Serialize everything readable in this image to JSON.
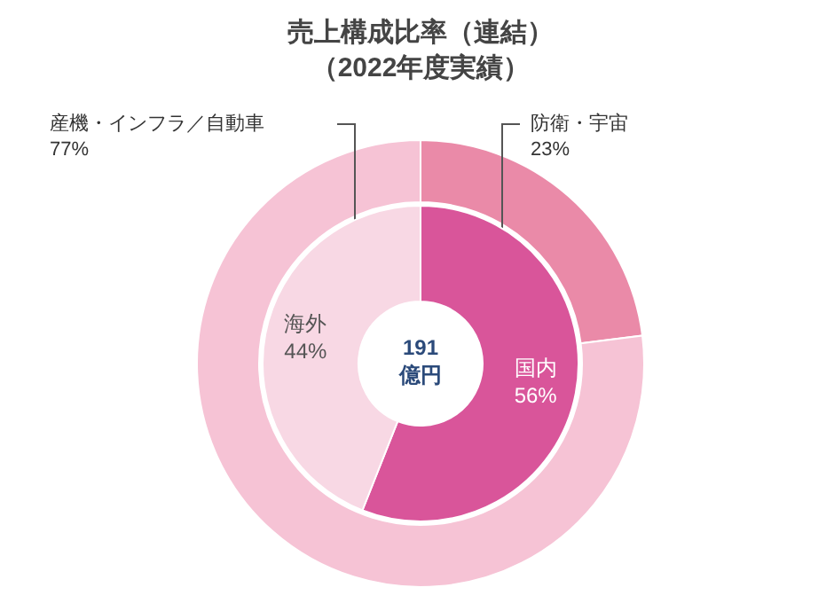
{
  "chart_data": [
    {
      "type": "donut",
      "title": "売上構成比率（連結）",
      "subtitle": "（2022年度実績）",
      "categories": [
        "防衛・宇宙",
        "産機・インフラ／自動車"
      ],
      "values": [
        23,
        77
      ],
      "value_labels": [
        "23%",
        "77%"
      ],
      "colors": [
        "#ea8aa8",
        "#f6c3d5"
      ]
    },
    {
      "type": "donut",
      "categories": [
        "国内",
        "海外"
      ],
      "values": [
        56,
        44
      ],
      "value_labels": [
        "56%",
        "44%"
      ],
      "colors": [
        "#d9559a",
        "#f8d8e4"
      ],
      "annotations": [
        "191\n億円"
      ]
    }
  ]
}
